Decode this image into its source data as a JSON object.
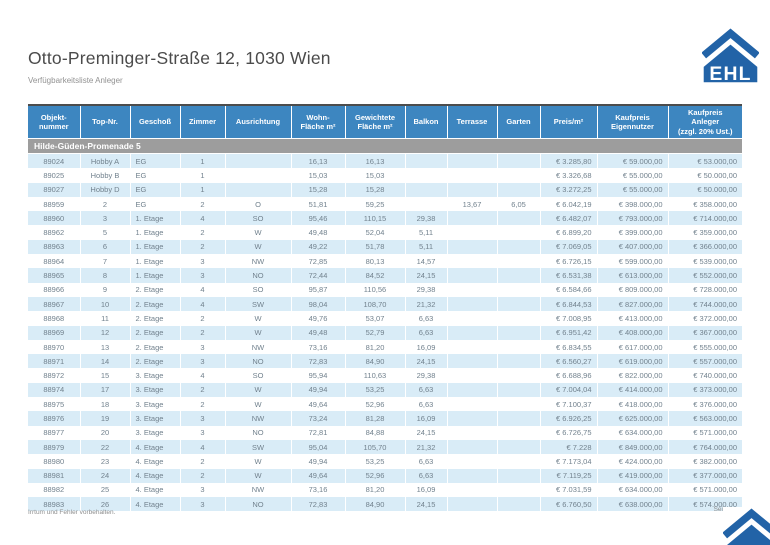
{
  "header": {
    "title": "Otto-Preminger-Straße 12, 1030 Wien",
    "subtitle": "Verfügbarkeitsliste Anleger"
  },
  "logo": {
    "text": "EHL"
  },
  "footer": {
    "left": "Irrtum und Fehler vorbehalten.",
    "right": "Sei"
  },
  "colors": {
    "table_header_blue": "#3d86c0",
    "row_stripe_blue": "#d9ecf7",
    "group_row_gray": "#9d9d9d",
    "logo_blue": "#2263a7",
    "row_text": "#72828e"
  },
  "table": {
    "columns": [
      "Objekt-\nnummer",
      "Top-Nr.",
      "Geschoß",
      "Zimmer",
      "Ausrichtung",
      "Wohn-\nFläche m²",
      "Gewichtete\nFläche m²",
      "Balkon",
      "Terrasse",
      "Garten",
      "Preis/m²",
      "Kaufpreis\nEigennutzer",
      "Kaufpreis\nAnleger\n(zzgl. 20% Ust.)"
    ],
    "group_header": "Hilde-Güden-Promenade 5",
    "rows": [
      [
        "89024",
        "Hobby A",
        "EG",
        "1",
        "",
        "16,13",
        "16,13",
        "",
        "",
        "",
        "€ 3.285,80",
        "€ 59.000,00",
        "€ 53.000,00"
      ],
      [
        "89025",
        "Hobby B",
        "EG",
        "1",
        "",
        "15,03",
        "15,03",
        "",
        "",
        "",
        "€ 3.326,68",
        "€ 55.000,00",
        "€ 50.000,00"
      ],
      [
        "89027",
        "Hobby D",
        "EG",
        "1",
        "",
        "15,28",
        "15,28",
        "",
        "",
        "",
        "€ 3.272,25",
        "€ 55.000,00",
        "€ 50.000,00"
      ],
      [
        "88959",
        "2",
        "EG",
        "2",
        "O",
        "51,81",
        "59,25",
        "",
        "13,67",
        "6,05",
        "€ 6.042,19",
        "€ 398.000,00",
        "€ 358.000,00"
      ],
      [
        "88960",
        "3",
        "1. Etage",
        "4",
        "SO",
        "95,46",
        "110,15",
        "29,38",
        "",
        "",
        "€ 6.482,07",
        "€ 793.000,00",
        "€ 714.000,00"
      ],
      [
        "88962",
        "5",
        "1. Etage",
        "2",
        "W",
        "49,48",
        "52,04",
        "5,11",
        "",
        "",
        "€ 6.899,20",
        "€ 399.000,00",
        "€ 359.000,00"
      ],
      [
        "88963",
        "6",
        "1. Etage",
        "2",
        "W",
        "49,22",
        "51,78",
        "5,11",
        "",
        "",
        "€ 7.069,05",
        "€ 407.000,00",
        "€ 366.000,00"
      ],
      [
        "88964",
        "7",
        "1. Etage",
        "3",
        "NW",
        "72,85",
        "80,13",
        "14,57",
        "",
        "",
        "€ 6.726,15",
        "€ 599.000,00",
        "€ 539.000,00"
      ],
      [
        "88965",
        "8",
        "1. Etage",
        "3",
        "NO",
        "72,44",
        "84,52",
        "24,15",
        "",
        "",
        "€ 6.531,38",
        "€ 613.000,00",
        "€ 552.000,00"
      ],
      [
        "88966",
        "9",
        "2. Etage",
        "4",
        "SO",
        "95,87",
        "110,56",
        "29,38",
        "",
        "",
        "€ 6.584,66",
        "€ 809.000,00",
        "€ 728.000,00"
      ],
      [
        "88967",
        "10",
        "2. Etage",
        "4",
        "SW",
        "98,04",
        "108,70",
        "21,32",
        "",
        "",
        "€ 6.844,53",
        "€ 827.000,00",
        "€ 744.000,00"
      ],
      [
        "88968",
        "11",
        "2. Etage",
        "2",
        "W",
        "49,76",
        "53,07",
        "6,63",
        "",
        "",
        "€ 7.008,95",
        "€ 413.000,00",
        "€ 372.000,00"
      ],
      [
        "88969",
        "12",
        "2. Etage",
        "2",
        "W",
        "49,48",
        "52,79",
        "6,63",
        "",
        "",
        "€ 6.951,42",
        "€ 408.000,00",
        "€ 367.000,00"
      ],
      [
        "88970",
        "13",
        "2. Etage",
        "3",
        "NW",
        "73,16",
        "81,20",
        "16,09",
        "",
        "",
        "€ 6.834,55",
        "€ 617.000,00",
        "€ 555.000,00"
      ],
      [
        "88971",
        "14",
        "2. Etage",
        "3",
        "NO",
        "72,83",
        "84,90",
        "24,15",
        "",
        "",
        "€ 6.560,27",
        "€ 619.000,00",
        "€ 557.000,00"
      ],
      [
        "88972",
        "15",
        "3. Etage",
        "4",
        "SO",
        "95,94",
        "110,63",
        "29,38",
        "",
        "",
        "€ 6.688,96",
        "€ 822.000,00",
        "€ 740.000,00"
      ],
      [
        "88974",
        "17",
        "3. Etage",
        "2",
        "W",
        "49,94",
        "53,25",
        "6,63",
        "",
        "",
        "€ 7.004,04",
        "€ 414.000,00",
        "€ 373.000,00"
      ],
      [
        "88975",
        "18",
        "3. Etage",
        "2",
        "W",
        "49,64",
        "52,96",
        "6,63",
        "",
        "",
        "€ 7.100,37",
        "€ 418.000,00",
        "€ 376.000,00"
      ],
      [
        "88976",
        "19",
        "3. Etage",
        "3",
        "NW",
        "73,24",
        "81,28",
        "16,09",
        "",
        "",
        "€ 6.926,25",
        "€ 625.000,00",
        "€ 563.000,00"
      ],
      [
        "88977",
        "20",
        "3. Etage",
        "3",
        "NO",
        "72,81",
        "84,88",
        "24,15",
        "",
        "",
        "€ 6.726,75",
        "€ 634.000,00",
        "€ 571.000,00"
      ],
      [
        "88979",
        "22",
        "4. Etage",
        "4",
        "SW",
        "95,04",
        "105,70",
        "21,32",
        "",
        "",
        "€ 7.228",
        "€ 849.000,00",
        "€ 764.000,00"
      ],
      [
        "88980",
        "23",
        "4. Etage",
        "2",
        "W",
        "49,94",
        "53,25",
        "6,63",
        "",
        "",
        "€ 7.173,04",
        "€ 424.000,00",
        "€ 382.000,00"
      ],
      [
        "88981",
        "24",
        "4. Etage",
        "2",
        "W",
        "49,64",
        "52,96",
        "6,63",
        "",
        "",
        "€ 7.119,25",
        "€ 419.000,00",
        "€ 377.000,00"
      ],
      [
        "88982",
        "25",
        "4. Etage",
        "3",
        "NW",
        "73,16",
        "81,20",
        "16,09",
        "",
        "",
        "€ 7.031,59",
        "€ 634.000,00",
        "€ 571.000,00"
      ],
      [
        "88983",
        "26",
        "4. Etage",
        "3",
        "NO",
        "72,83",
        "84,90",
        "24,15",
        "",
        "",
        "€ 6.760,50",
        "€ 638.000,00",
        "€ 574.000,00"
      ]
    ]
  }
}
